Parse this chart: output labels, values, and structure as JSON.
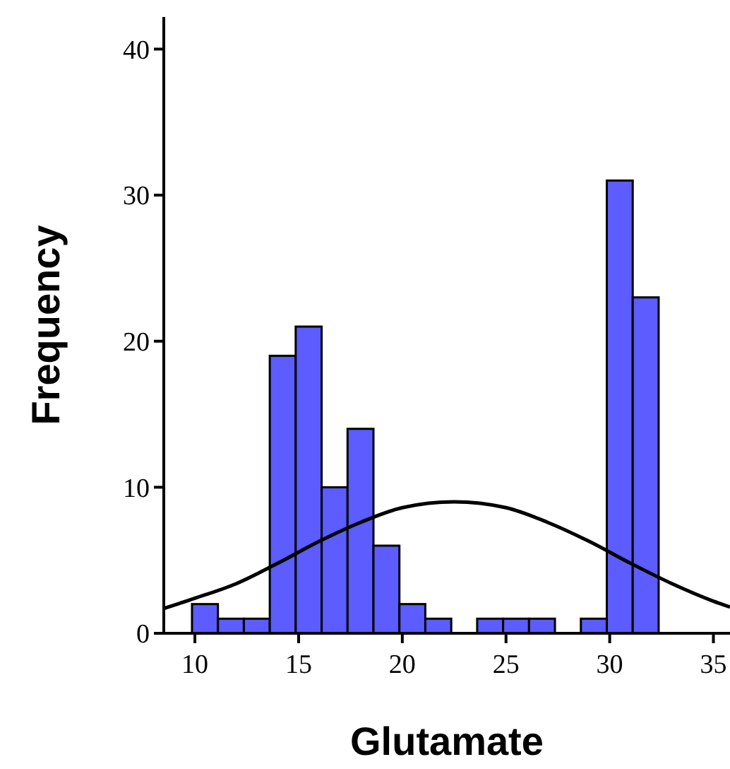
{
  "chart_data": {
    "type": "histogram",
    "xlabel": "Glutamate",
    "ylabel": "Frequency",
    "bins": [
      9.86,
      11.11,
      12.36,
      13.61,
      14.86,
      16.11,
      17.36,
      18.61,
      19.86,
      21.11,
      22.36,
      23.61,
      24.86,
      26.11,
      27.36,
      28.61,
      29.86,
      31.11,
      32.36
    ],
    "values": [
      2,
      1,
      1,
      19,
      21,
      10,
      14,
      6,
      2,
      1,
      0,
      1,
      1,
      1,
      0,
      1,
      31,
      23
    ],
    "color": "#5c5cff",
    "series": [
      {
        "type": "line",
        "color": "#000000",
        "x": [
          8.5,
          10,
          12,
          14,
          16,
          18,
          20,
          22.5,
          25,
          27,
          29,
          31,
          33,
          35,
          35.8
        ],
        "values": [
          1.7,
          2.4,
          3.4,
          4.8,
          6.3,
          7.6,
          8.6,
          9.0,
          8.6,
          7.6,
          6.3,
          4.8,
          3.4,
          2.2,
          1.8
        ]
      }
    ],
    "xlim": [
      8.5,
      35.8
    ],
    "xticks": [
      10,
      15,
      20,
      25,
      30,
      35
    ],
    "ylim": [
      0,
      42.2
    ],
    "yticks": [
      0,
      10,
      20,
      30,
      40
    ],
    "grid": false
  }
}
